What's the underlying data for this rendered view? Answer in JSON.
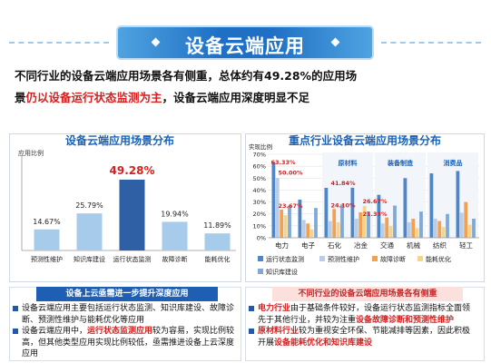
{
  "header": {
    "title": "设备云端应用",
    "summary": {
      "line1": "不同行业的设备云端应用场景各有侧重，总体约有49.28%的应用场",
      "line2_pre": "景",
      "line2_hl": "仍以设备运行状态监测为主",
      "line2_post": "，设备云端应用深度明显不足"
    }
  },
  "left_panel": {
    "title": "设备云端应用场景分布",
    "ylabel": "应用比例"
  },
  "right_panel": {
    "title": "重点行业设备云端应用场景分布",
    "ylabel": "实现比例"
  },
  "chart_data": [
    {
      "type": "bar",
      "title": "设备云端应用场景分布",
      "ylabel": "应用比例",
      "categories": [
        "预测性维护",
        "知识库建设",
        "运行状态监测",
        "故障诊断",
        "能耗优化"
      ],
      "values": [
        14.67,
        25.79,
        49.28,
        19.94,
        11.89
      ],
      "value_labels": [
        "14.67%",
        "25.79%",
        "49.28%",
        "19.94%",
        "11.89%"
      ],
      "highlight_index": 2,
      "colors": [
        "#a7cbea",
        "#a7cbea",
        "#2f60a6",
        "#a7cbea",
        "#a7cbea"
      ],
      "ylim": [
        0,
        60
      ]
    },
    {
      "type": "bar",
      "title": "重点行业设备云端应用场景分布",
      "ylabel": "实现比例",
      "ylim": [
        0,
        70
      ],
      "yticks": [
        "0%",
        "10%",
        "20%",
        "30%",
        "40%",
        "50%",
        "60%",
        "70%"
      ],
      "categories": [
        "电力",
        "电子",
        "石化",
        "冶金",
        "交通",
        "机械",
        "纺织",
        "轻工"
      ],
      "groups": [
        "原材料",
        "装备制造",
        "消费品"
      ],
      "series": [
        {
          "name": "运行状态监测",
          "color": "#4f86c6",
          "values": [
            63.33,
            32,
            41.84,
            42,
            36,
            50,
            54,
            56
          ]
        },
        {
          "name": "预测性维护",
          "color": "#b9cde6",
          "values": [
            50,
            15,
            14,
            16,
            12,
            13,
            16,
            21
          ]
        },
        {
          "name": "故障诊断",
          "color": "#f2a154",
          "values": [
            23.67,
            12,
            24.1,
            21.33,
            17,
            16,
            14,
            30
          ]
        },
        {
          "name": "能耗优化",
          "color": "#f6d48a",
          "values": [
            19,
            7,
            13,
            26.67,
            10,
            8,
            9,
            11
          ]
        },
        {
          "name": "知识库建设",
          "color": "#7fa9d8",
          "values": [
            27,
            25,
            28,
            22,
            27,
            22,
            20,
            16
          ]
        }
      ],
      "annotations": [
        "63.33%",
        "50.00%",
        "23.67%",
        "41.84%",
        "24.10%",
        "26.67%",
        "21.33%"
      ]
    }
  ],
  "bottom_left": {
    "header": "设备上云亟需进一步提升深度应用",
    "b1": "设备云端应用主要包括运行状态监测、知识库建设、故障诊断、预测性维护与能耗优化等应用",
    "b2_pre": "设备云端应用中，",
    "b2_hl": "运行状态监测应用",
    "b2_post": "较为容易，实现比例较高，但其他类型应用实现比例较低，亟需推进设备上云深度应用"
  },
  "bottom_right": {
    "header": "不同行业的设备云端应用场景各有侧重",
    "b1_hl": "电力行业",
    "b1_mid": "由于基础条件较好，设备运行状态监测指标全面领先于其他行业，并较为注重",
    "b1_hl2": "设备故障诊断和预测性维护",
    "b2_hl": "原材料行业",
    "b2_mid": "较为重视安全环保、节能减排等因素，因此积极开展",
    "b2_hl2": "设备能耗优化和知识库建设"
  }
}
